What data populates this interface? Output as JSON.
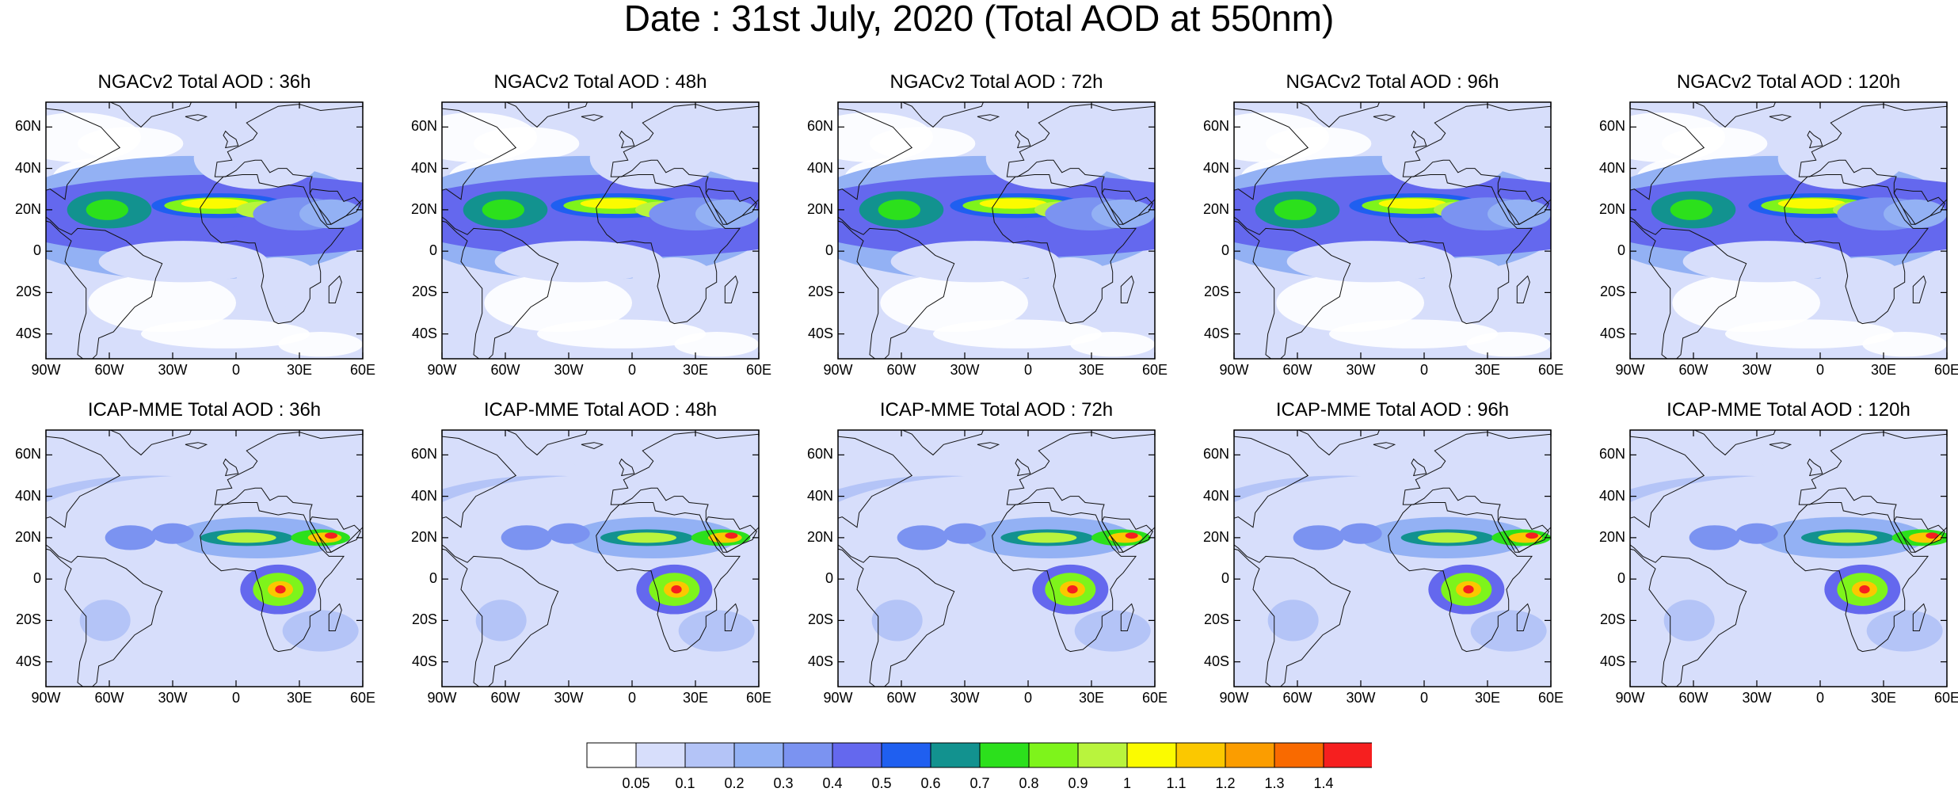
{
  "title": "Date : 31st July, 2020 (Total AOD at 550nm)",
  "axes": {
    "lat_ticks": [
      "60N",
      "40N",
      "20N",
      "0",
      "20S",
      "40S"
    ],
    "lon_ticks": [
      "90W",
      "60W",
      "30W",
      "0",
      "30E",
      "60E"
    ]
  },
  "rows": [
    {
      "model": "NGACv2",
      "panels": [
        {
          "title": "NGACv2 Total AOD : 36h",
          "lead_hours": 36
        },
        {
          "title": "NGACv2 Total AOD : 48h",
          "lead_hours": 48
        },
        {
          "title": "NGACv2 Total AOD : 72h",
          "lead_hours": 72
        },
        {
          "title": "NGACv2 Total AOD : 96h",
          "lead_hours": 96
        },
        {
          "title": "NGACv2 Total AOD : 120h",
          "lead_hours": 120
        }
      ]
    },
    {
      "model": "ICAP-MME",
      "panels": [
        {
          "title": "ICAP-MME Total AOD : 36h",
          "lead_hours": 36
        },
        {
          "title": "ICAP-MME Total AOD : 48h",
          "lead_hours": 48
        },
        {
          "title": "ICAP-MME Total AOD : 72h",
          "lead_hours": 72
        },
        {
          "title": "ICAP-MME Total AOD : 96h",
          "lead_hours": 96
        },
        {
          "title": "ICAP-MME Total AOD : 120h",
          "lead_hours": 120
        }
      ]
    }
  ],
  "colorbar": {
    "labels": [
      "0.05",
      "0.1",
      "0.2",
      "0.3",
      "0.4",
      "0.5",
      "0.6",
      "0.7",
      "0.8",
      "0.9",
      "1",
      "1.1",
      "1.2",
      "1.3",
      "1.4"
    ],
    "colors": [
      "#ffffff",
      "#d7defb",
      "#b4c4f7",
      "#93b1f4",
      "#7b93f1",
      "#6468ee",
      "#1f5ff0",
      "#12928f",
      "#2ce01c",
      "#7ef41b",
      "#b9f43d",
      "#fbfb00",
      "#fbc800",
      "#fb9d00",
      "#f96a00",
      "#f61f1f"
    ]
  }
}
